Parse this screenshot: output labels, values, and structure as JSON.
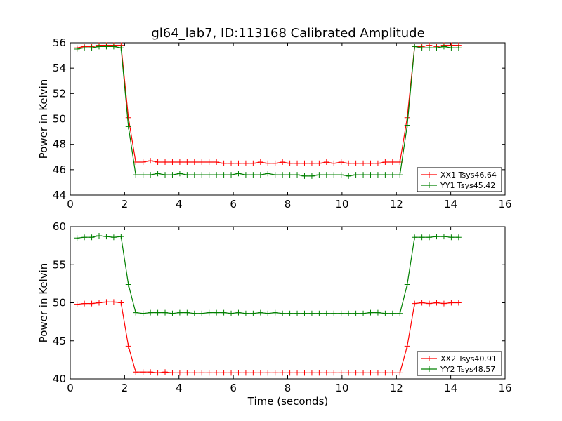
{
  "figure": {
    "title": "gl64_lab7, ID:113168 Calibrated Amplitude",
    "xlabel": "Time (seconds)"
  },
  "chart_data": [
    {
      "type": "line",
      "title": "gl64_lab7, ID:113168 Calibrated Amplitude",
      "xlabel": "",
      "ylabel": "Power in Kelvin",
      "xlim": [
        0,
        16
      ],
      "ylim": [
        44,
        56
      ],
      "xticks": [
        0,
        2,
        4,
        6,
        8,
        10,
        12,
        14,
        16
      ],
      "yticks": [
        44,
        46,
        48,
        50,
        52,
        54,
        56
      ],
      "legend": "lower-right",
      "grid": false,
      "x": [
        0.25,
        0.52,
        0.79,
        1.06,
        1.33,
        1.6,
        1.87,
        2.14,
        2.41,
        2.68,
        2.95,
        3.22,
        3.49,
        3.76,
        4.03,
        4.3,
        4.57,
        4.84,
        5.11,
        5.38,
        5.65,
        5.92,
        6.19,
        6.46,
        6.73,
        7.0,
        7.27,
        7.54,
        7.81,
        8.08,
        8.35,
        8.62,
        8.89,
        9.16,
        9.43,
        9.7,
        9.97,
        10.24,
        10.51,
        10.78,
        11.05,
        11.32,
        11.59,
        11.86,
        12.13,
        12.4,
        12.67,
        12.94,
        13.21,
        13.48,
        13.75,
        14.02,
        14.29
      ],
      "series": [
        {
          "name": "XX1 Tsys46.64",
          "color": "#ff0000",
          "values": [
            55.6,
            55.7,
            55.7,
            55.8,
            55.8,
            55.8,
            55.8,
            50.1,
            46.6,
            46.6,
            46.7,
            46.6,
            46.6,
            46.6,
            46.6,
            46.6,
            46.6,
            46.6,
            46.6,
            46.6,
            46.5,
            46.5,
            46.5,
            46.5,
            46.5,
            46.6,
            46.5,
            46.5,
            46.6,
            46.5,
            46.5,
            46.5,
            46.5,
            46.5,
            46.6,
            46.5,
            46.6,
            46.5,
            46.5,
            46.5,
            46.5,
            46.5,
            46.6,
            46.6,
            46.6,
            50.1,
            55.7,
            55.7,
            55.8,
            55.7,
            55.8,
            55.8,
            55.8
          ]
        },
        {
          "name": "YY1 Tsys45.42",
          "color": "#008000",
          "values": [
            55.5,
            55.6,
            55.6,
            55.7,
            55.7,
            55.7,
            55.6,
            49.4,
            45.6,
            45.6,
            45.6,
            45.7,
            45.6,
            45.6,
            45.7,
            45.6,
            45.6,
            45.6,
            45.6,
            45.6,
            45.6,
            45.6,
            45.7,
            45.6,
            45.6,
            45.6,
            45.7,
            45.6,
            45.6,
            45.6,
            45.6,
            45.5,
            45.5,
            45.6,
            45.6,
            45.6,
            45.6,
            45.5,
            45.6,
            45.6,
            45.6,
            45.6,
            45.6,
            45.6,
            45.6,
            49.5,
            55.7,
            55.6,
            55.6,
            55.6,
            55.7,
            55.6,
            55.6
          ]
        }
      ]
    },
    {
      "type": "line",
      "title": "",
      "xlabel": "Time (seconds)",
      "ylabel": "Power in Kelvin",
      "xlim": [
        0,
        16
      ],
      "ylim": [
        40,
        60
      ],
      "xticks": [
        0,
        2,
        4,
        6,
        8,
        10,
        12,
        14,
        16
      ],
      "yticks": [
        40,
        45,
        50,
        55,
        60
      ],
      "legend": "lower-right",
      "grid": false,
      "x": [
        0.25,
        0.52,
        0.79,
        1.06,
        1.33,
        1.6,
        1.87,
        2.14,
        2.41,
        2.68,
        2.95,
        3.22,
        3.49,
        3.76,
        4.03,
        4.3,
        4.57,
        4.84,
        5.11,
        5.38,
        5.65,
        5.92,
        6.19,
        6.46,
        6.73,
        7.0,
        7.27,
        7.54,
        7.81,
        8.08,
        8.35,
        8.62,
        8.89,
        9.16,
        9.43,
        9.7,
        9.97,
        10.24,
        10.51,
        10.78,
        11.05,
        11.32,
        11.59,
        11.86,
        12.13,
        12.4,
        12.67,
        12.94,
        13.21,
        13.48,
        13.75,
        14.02,
        14.29
      ],
      "series": [
        {
          "name": "XX2 Tsys40.91",
          "color": "#ff0000",
          "values": [
            49.8,
            49.9,
            49.9,
            50.0,
            50.1,
            50.1,
            50.0,
            44.3,
            40.9,
            40.9,
            40.9,
            40.8,
            40.9,
            40.8,
            40.8,
            40.8,
            40.8,
            40.8,
            40.8,
            40.8,
            40.8,
            40.8,
            40.8,
            40.8,
            40.8,
            40.8,
            40.8,
            40.8,
            40.8,
            40.8,
            40.8,
            40.8,
            40.8,
            40.8,
            40.8,
            40.8,
            40.8,
            40.8,
            40.8,
            40.8,
            40.8,
            40.8,
            40.8,
            40.8,
            40.8,
            44.3,
            49.9,
            50.0,
            49.9,
            50.0,
            49.9,
            50.0,
            50.0
          ]
        },
        {
          "name": "YY2 Tsys48.57",
          "color": "#008000",
          "values": [
            58.5,
            58.6,
            58.6,
            58.8,
            58.7,
            58.6,
            58.7,
            52.4,
            48.7,
            48.6,
            48.7,
            48.7,
            48.7,
            48.6,
            48.7,
            48.7,
            48.6,
            48.6,
            48.7,
            48.7,
            48.7,
            48.6,
            48.7,
            48.6,
            48.6,
            48.7,
            48.6,
            48.7,
            48.6,
            48.6,
            48.6,
            48.6,
            48.6,
            48.6,
            48.6,
            48.6,
            48.6,
            48.6,
            48.6,
            48.6,
            48.7,
            48.7,
            48.6,
            48.6,
            48.6,
            52.4,
            58.6,
            58.6,
            58.6,
            58.7,
            58.7,
            58.6,
            58.6
          ]
        }
      ]
    }
  ]
}
